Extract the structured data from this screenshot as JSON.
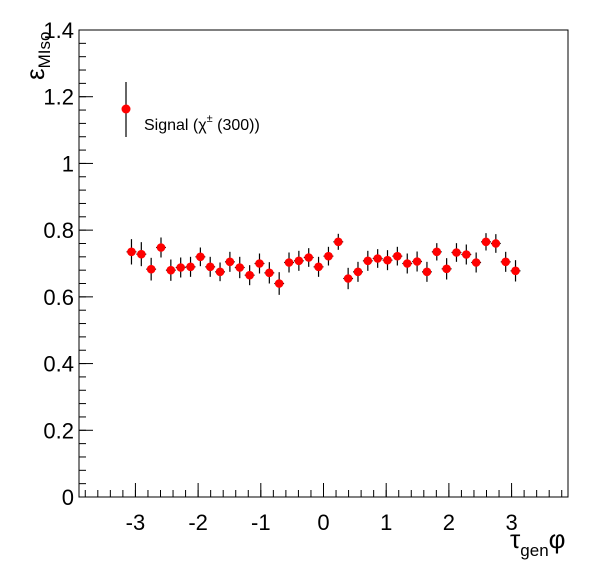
{
  "chart_data": {
    "type": "scatter",
    "xlabel": {
      "main": "τ",
      "sub": "gen",
      "suffix": "φ"
    },
    "ylabel": {
      "main": "ε",
      "sub": "MIso"
    },
    "xlim": [
      -3.9,
      3.9
    ],
    "ylim": [
      0,
      1.4
    ],
    "x_ticks": [
      -3,
      -2,
      -1,
      0,
      1,
      2,
      3
    ],
    "x_tick_labels": [
      "-3",
      "-2",
      "-1",
      "0",
      "1",
      "2",
      "3"
    ],
    "y_ticks": [
      0,
      0.2,
      0.4,
      0.6,
      0.8,
      1,
      1.2,
      1.4
    ],
    "y_tick_labels": [
      "0",
      "0.2",
      "0.4",
      "0.6",
      "0.8",
      "1",
      "1.2",
      "1.4"
    ],
    "grid": false,
    "legend_position": "top-left",
    "series": [
      {
        "name": "Signal (χ± (300))",
        "legend_label": "Signal (χ",
        "legend_sup": "±",
        "legend_label_tail": " (300))",
        "color": "#ff0000",
        "x_halfwidth": 0.0785,
        "x": [
          -3.063,
          -2.906,
          -2.749,
          -2.592,
          -2.435,
          -2.278,
          -2.121,
          -1.964,
          -1.807,
          -1.65,
          -1.493,
          -1.336,
          -1.178,
          -1.021,
          -0.864,
          -0.707,
          -0.55,
          -0.393,
          -0.236,
          -0.079,
          0.079,
          0.236,
          0.393,
          0.55,
          0.707,
          0.864,
          1.021,
          1.178,
          1.336,
          1.493,
          1.65,
          1.807,
          1.964,
          2.121,
          2.278,
          2.435,
          2.592,
          2.749,
          2.906,
          3.063
        ],
        "y": [
          0.735,
          0.728,
          0.683,
          0.748,
          0.68,
          0.688,
          0.69,
          0.72,
          0.69,
          0.675,
          0.705,
          0.688,
          0.665,
          0.7,
          0.672,
          0.64,
          0.703,
          0.708,
          0.718,
          0.69,
          0.722,
          0.765,
          0.655,
          0.675,
          0.708,
          0.715,
          0.71,
          0.722,
          0.7,
          0.706,
          0.675,
          0.735,
          0.684,
          0.733,
          0.727,
          0.703,
          0.765,
          0.76,
          0.705,
          0.678
        ],
        "y_err": [
          0.038,
          0.036,
          0.034,
          0.03,
          0.032,
          0.03,
          0.03,
          0.028,
          0.03,
          0.028,
          0.03,
          0.032,
          0.03,
          0.03,
          0.032,
          0.034,
          0.03,
          0.03,
          0.028,
          0.03,
          0.028,
          0.024,
          0.032,
          0.03,
          0.03,
          0.028,
          0.03,
          0.028,
          0.03,
          0.03,
          0.03,
          0.026,
          0.032,
          0.028,
          0.03,
          0.03,
          0.026,
          0.028,
          0.03,
          0.032
        ]
      }
    ]
  }
}
